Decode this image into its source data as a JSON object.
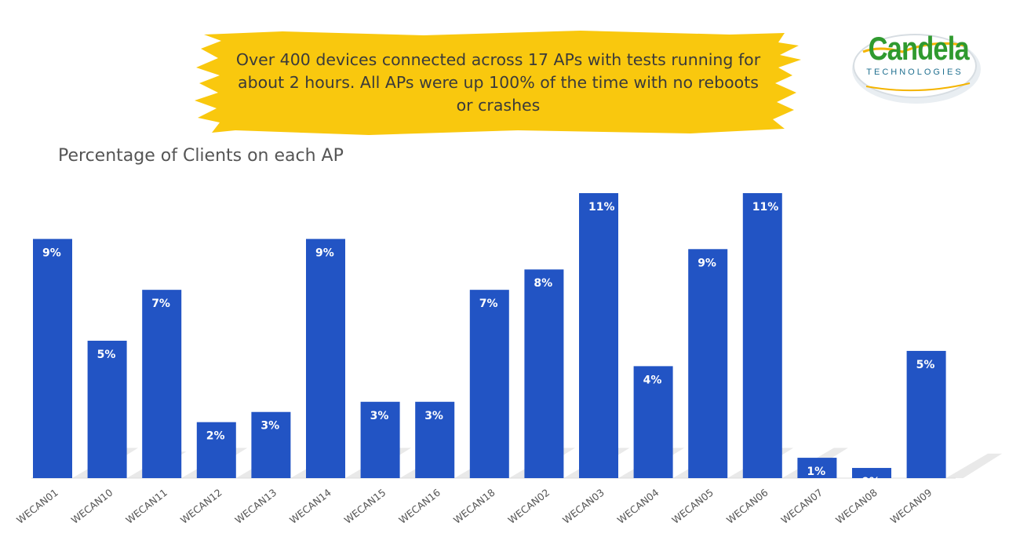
{
  "banner": {
    "text": "Over 400 devices connected across 17 APs with tests running for about 2 hours. All APs were up 100% of the time with no reboots or crashes",
    "color": "#f9c80e"
  },
  "logo": {
    "name": "Candela",
    "tagline": "TECHNOLOGIES"
  },
  "chart_data": {
    "type": "bar",
    "title": "Percentage of Clients on each AP",
    "categories": [
      "WECAN01",
      "WECAN10",
      "WECAN11",
      "WECAN12",
      "WECAN13",
      "WECAN14",
      "WECAN15",
      "WECAN16",
      "WECAN18",
      "WECAN02",
      "WECAN03",
      "WECAN04",
      "WECAN05",
      "WECAN06",
      "WECAN07",
      "WECAN08",
      "WECAN09"
    ],
    "values": [
      9.4,
      5.4,
      7.4,
      2.2,
      2.6,
      9.4,
      3.0,
      3.0,
      7.4,
      8.2,
      11.2,
      4.4,
      9.0,
      11.2,
      0.8,
      0.4,
      5.0
    ],
    "labels": [
      "9%",
      "5%",
      "7%",
      "2%",
      "3%",
      "9%",
      "3%",
      "3%",
      "7%",
      "8%",
      "11%",
      "4%",
      "9%",
      "11%",
      "1%",
      "0%",
      "5%"
    ],
    "ylim": [
      0,
      11.2
    ],
    "bar_color": "#2254c4",
    "label_color": "#ffffff",
    "grid": false,
    "legend": "none"
  }
}
